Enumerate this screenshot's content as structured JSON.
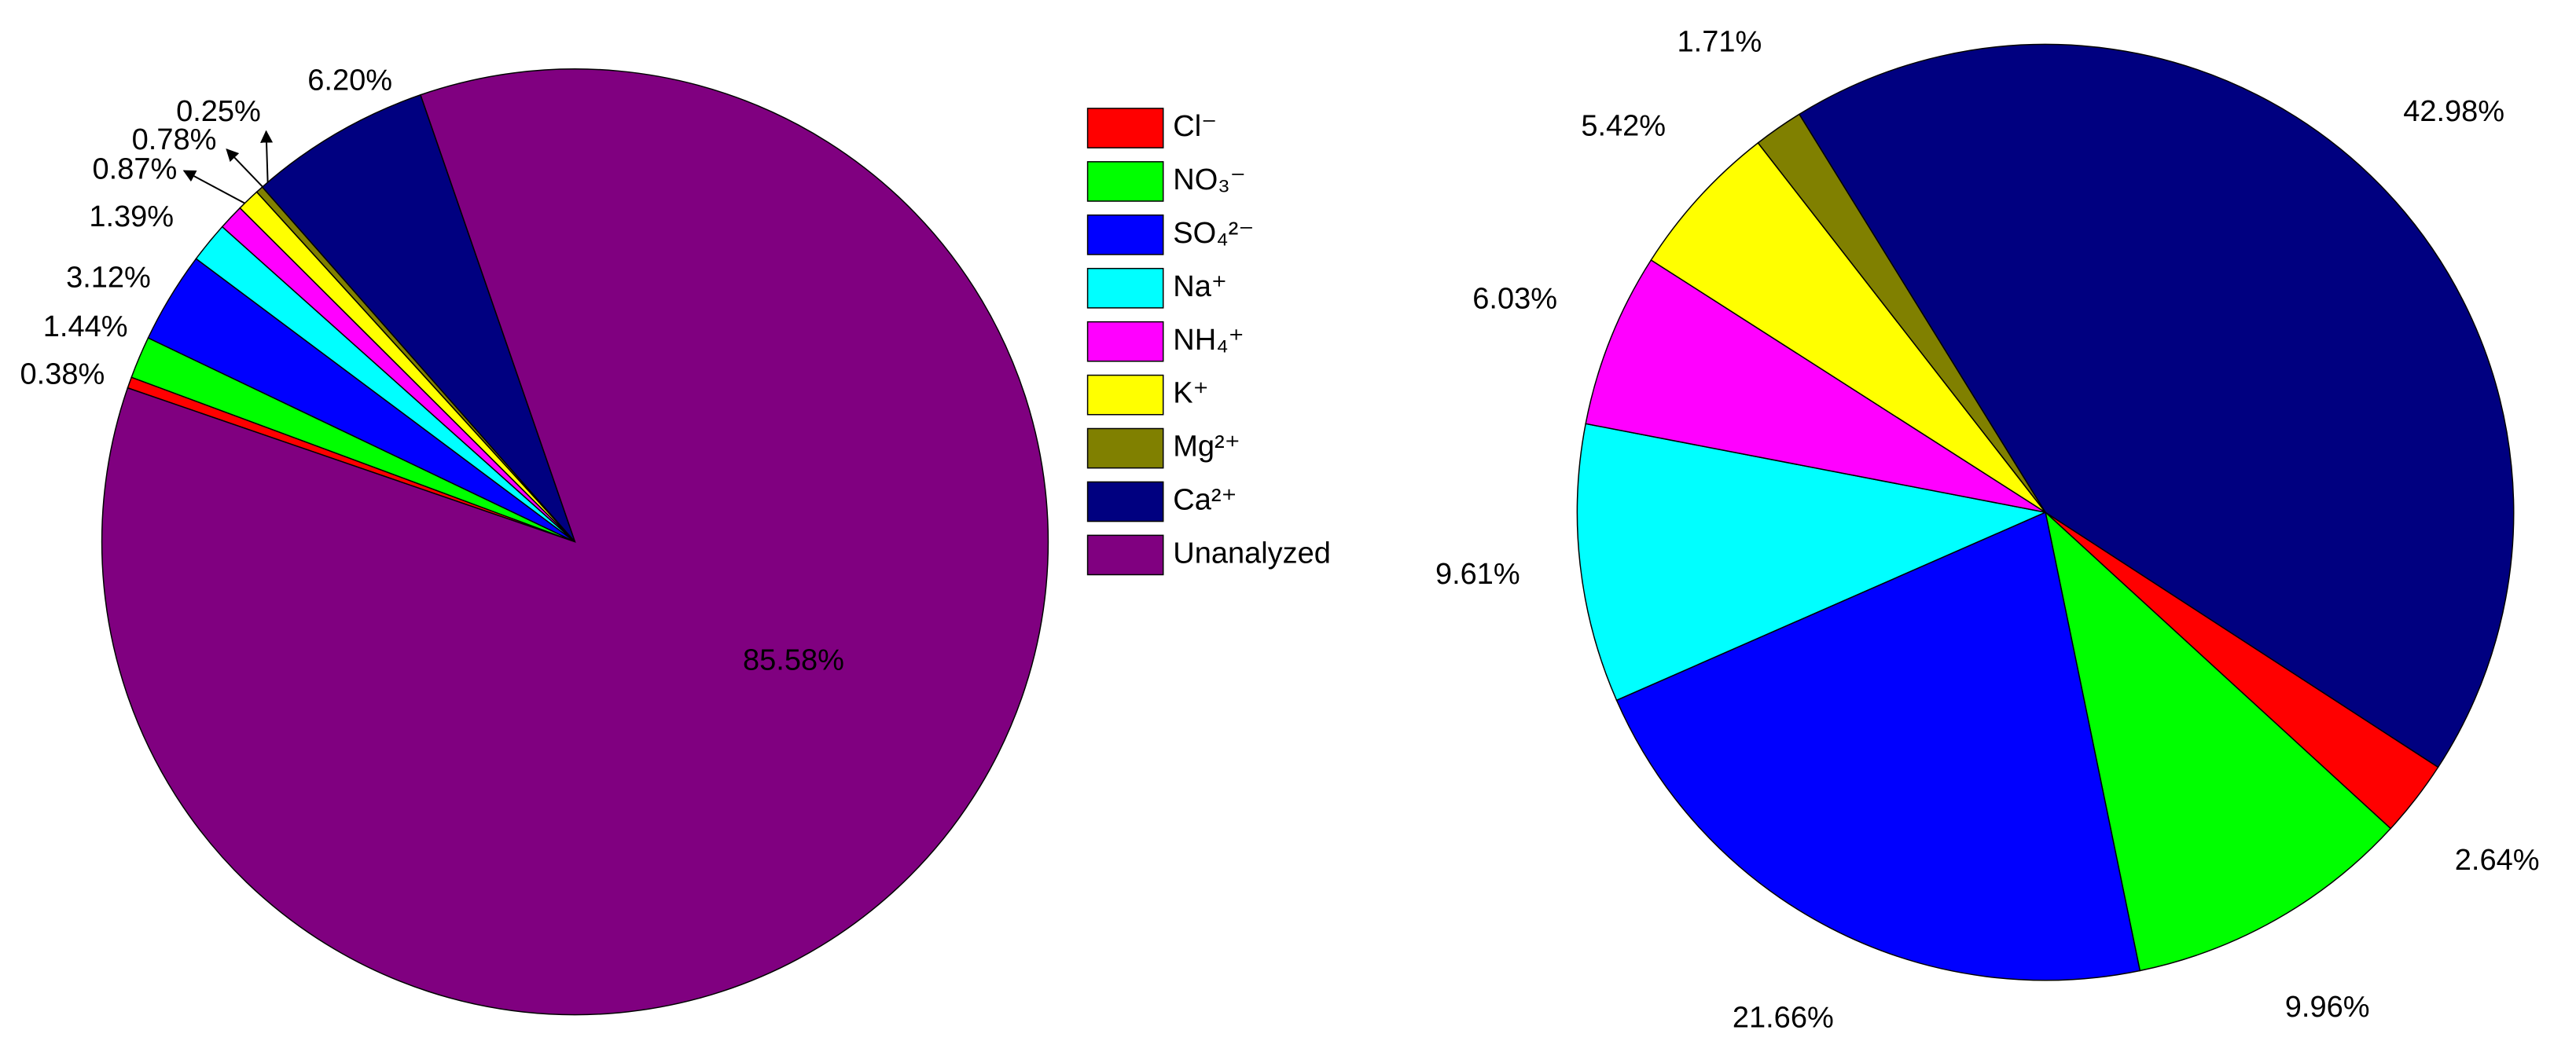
{
  "chart_data": [
    {
      "type": "pie",
      "categories": [
        "Cl⁻",
        "NO₃⁻",
        "SO₄²⁻",
        "Na⁺",
        "NH₄⁺",
        "K⁺",
        "Mg²⁺",
        "Ca²⁺",
        "Unanalyzed"
      ],
      "values": [
        0.38,
        1.44,
        3.12,
        1.39,
        0.87,
        0.78,
        0.25,
        6.2,
        85.58
      ],
      "value_labels": [
        "0.38%",
        "1.44%",
        "3.12%",
        "1.39%",
        "0.87%",
        "0.78%",
        "0.25%",
        "6.20%",
        "85.58%"
      ],
      "colors": [
        "#ff0000",
        "#00ff00",
        "#0000ff",
        "#00ffff",
        "#ff00ff",
        "#ffff00",
        "#808000",
        "#000080",
        "#800080"
      ]
    },
    {
      "type": "pie",
      "values": [
        2.64,
        9.96,
        21.66,
        9.61,
        6.03,
        5.42,
        1.71,
        42.98
      ],
      "value_labels": [
        "2.64%",
        "9.96%",
        "21.66%",
        "9.61%",
        "6.03%",
        "5.42%",
        "1.71%",
        "42.98%"
      ],
      "colors": [
        "#ff0000",
        "#00ff00",
        "#0000ff",
        "#00ffff",
        "#ff00ff",
        "#ffff00",
        "#808000",
        "#000080"
      ]
    }
  ]
}
